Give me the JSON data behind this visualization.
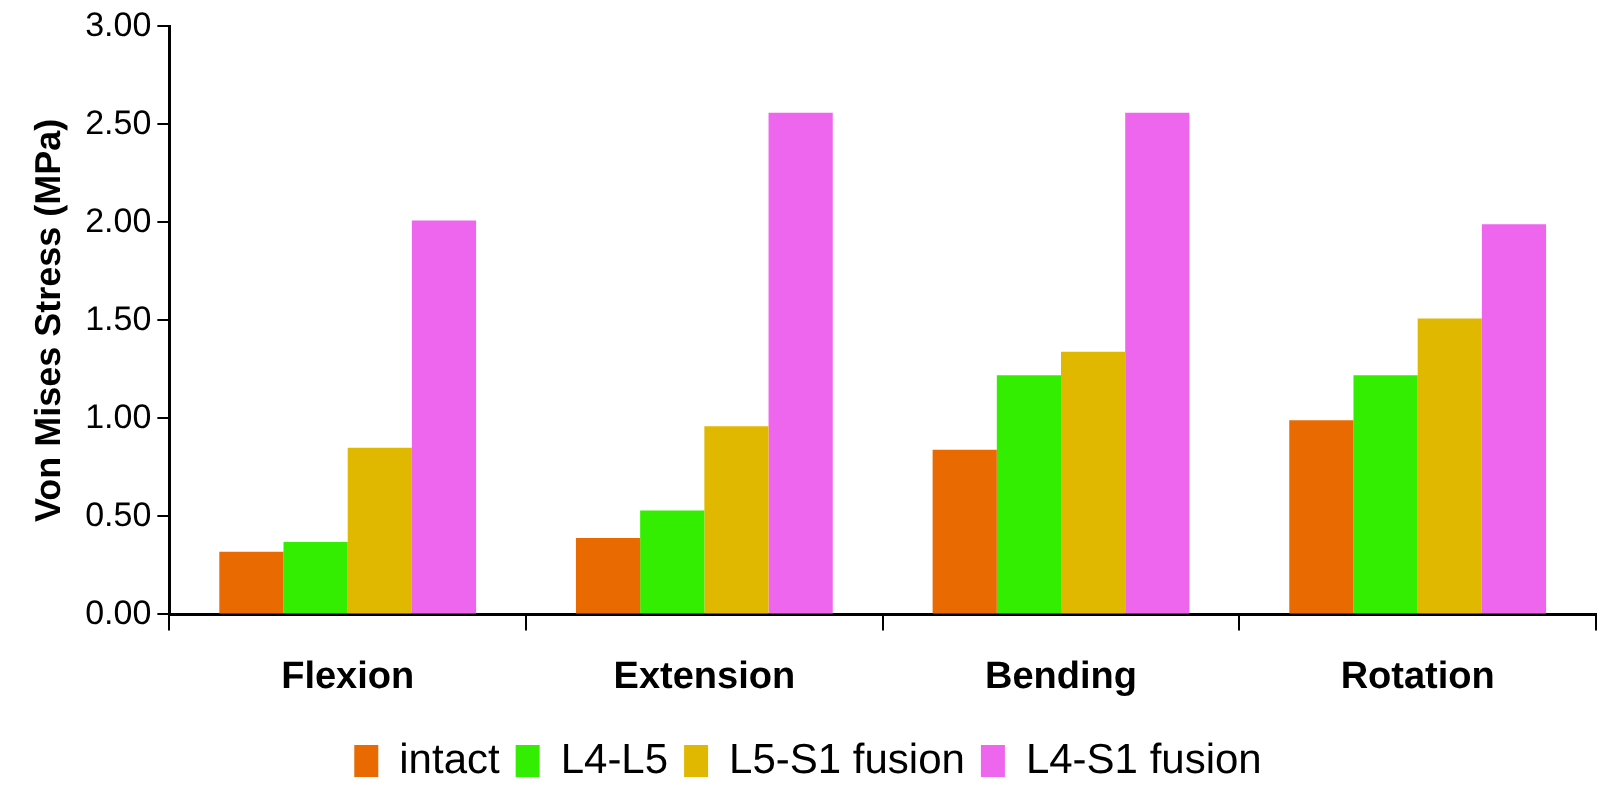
{
  "chart_data": {
    "type": "bar",
    "ylabel": "Von Mises Stress (MPa)",
    "categories": [
      "Flexion",
      "Extension",
      "Bending",
      "Rotation"
    ],
    "series": [
      {
        "name": "intact",
        "color": "#e86a00",
        "values": [
          0.32,
          0.39,
          0.84,
          0.99
        ]
      },
      {
        "name": "L4-L5",
        "color": "#33ee00",
        "values": [
          0.37,
          0.53,
          1.22,
          1.22
        ]
      },
      {
        "name": "L5-S1 fusion",
        "color": "#e0b800",
        "values": [
          0.85,
          0.96,
          1.34,
          1.51
        ]
      },
      {
        "name": "L4-S1 fusion",
        "color": "#ee66ee",
        "values": [
          2.01,
          2.56,
          2.56,
          1.99
        ]
      }
    ],
    "ylim": [
      0,
      3
    ],
    "yticks": [
      {
        "value": 0,
        "label": "0.00"
      },
      {
        "value": 0.5,
        "label": "0.50"
      },
      {
        "value": 1,
        "label": "1.00"
      },
      {
        "value": 1.5,
        "label": "1.50"
      },
      {
        "value": 2,
        "label": "2.00"
      },
      {
        "value": 2.5,
        "label": "2.50"
      },
      {
        "value": 3,
        "label": "3.00"
      }
    ],
    "grid": false,
    "legend": "bottom"
  }
}
